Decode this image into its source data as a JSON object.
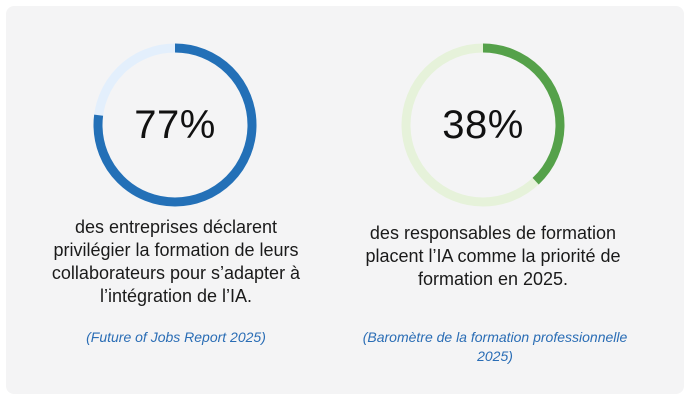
{
  "stats": [
    {
      "value": "77%",
      "percent": 77,
      "description": "des entreprises déclarent privilégier la formation de leurs collaborateurs pour s’adapter à l’intégration de l’IA.",
      "source": "(Future of Jobs Report 2025)",
      "colors": {
        "progress": "#2370b7",
        "track": "#e3effc"
      }
    },
    {
      "value": "38%",
      "percent": 38,
      "description": "des responsables de formation placent l’IA comme la priorité de formation en 2025.",
      "source": "(Baromètre de la formation professionnelle 2025)",
      "colors": {
        "progress": "#55a14a",
        "track": "#e6f2da"
      }
    }
  ]
}
